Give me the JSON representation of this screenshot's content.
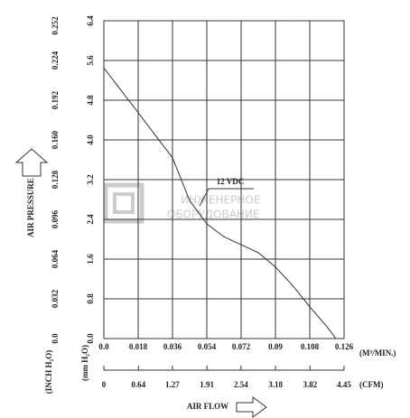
{
  "chart_data": {
    "type": "line",
    "x_label": "AIR FLOW",
    "y_label": "AIR PRESSURE",
    "x_unit": "(M³/MIN.)",
    "x2_unit": "(CFM)",
    "y_unit": "(mm H₂O)",
    "y2_unit": "(INCH H₂O)",
    "watermark": [
      "ИНЖЕНЕРНОЕ",
      "ОБОРУДОВАНИЕ"
    ],
    "x": [
      0,
      0.018,
      0.036,
      0.045,
      0.054,
      0.063,
      0.072,
      0.081,
      0.09,
      0.099,
      0.108,
      0.117,
      0.1217
    ],
    "series": [
      {
        "name": "12 VDC",
        "color": "#333333",
        "values": [
          5.45,
          4.55,
          3.64,
          2.78,
          2.31,
          2.05,
          1.89,
          1.73,
          1.44,
          1.07,
          0.64,
          0.24,
          0
        ]
      }
    ],
    "xlim": [
      0,
      0.126
    ],
    "xticks": [
      {
        "value": 0,
        "label": "0.0"
      },
      0.018,
      0.036,
      0.054,
      0.072,
      0.09,
      0.108,
      0.126
    ],
    "x2lim": [
      0,
      4.45
    ],
    "x2ticks": [
      0,
      0.64,
      1.27,
      1.91,
      2.54,
      3.18,
      3.82,
      4.45
    ],
    "ylim": [
      0,
      6.4
    ],
    "yticks": [
      {
        "value": 0,
        "label": "0.0"
      },
      0.8,
      1.6,
      2.4,
      3.2,
      {
        "value": 4,
        "label": "4.0"
      },
      4.8,
      5.6,
      6.4
    ],
    "y2lim": [
      0,
      0.256
    ],
    "y2ticks": [
      {
        "value": 0,
        "label": "0.0"
      },
      0.032,
      0.064,
      0.096,
      0.128,
      {
        "value": 0.16,
        "label": "0.160"
      },
      0.192,
      0.224,
      0.252
    ],
    "grid": true
  }
}
